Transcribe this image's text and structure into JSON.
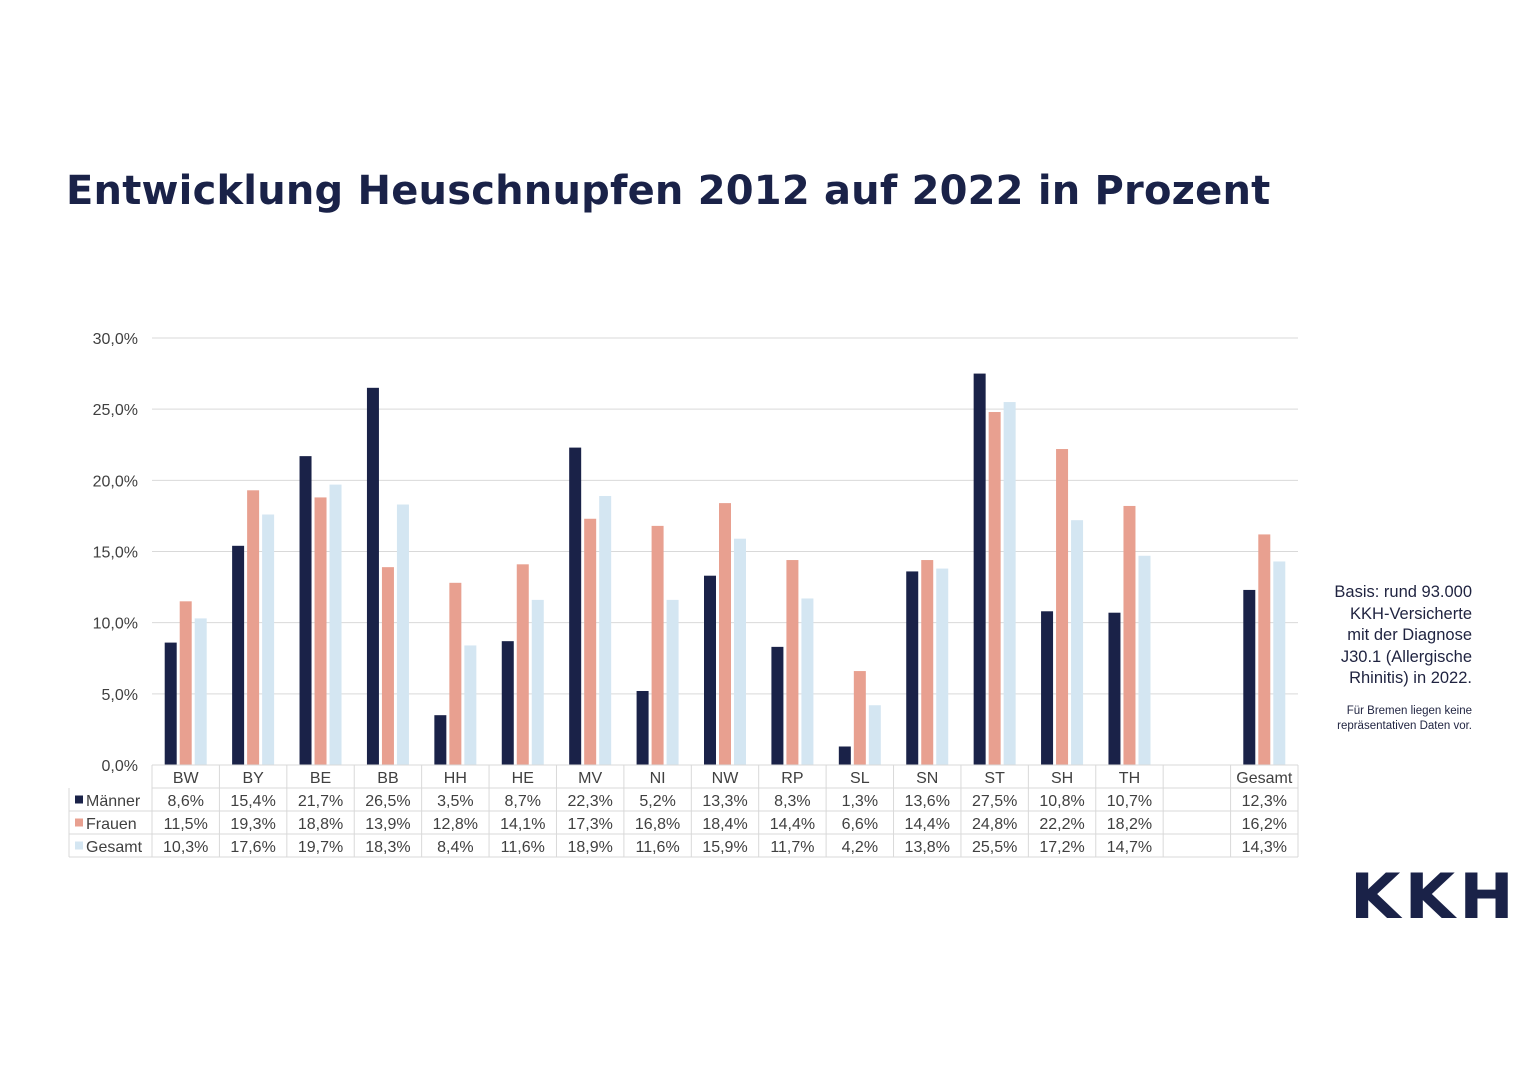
{
  "title": "Entwicklung Heuschnupfen 2012 auf 2022 in Prozent",
  "note": {
    "lines": [
      "Basis: rund 93.000",
      "KKH-Versicherte",
      "mit der Diagnose",
      "J30.1 (Allergische",
      "Rhinitis) in 2022."
    ],
    "footnote_lines": [
      "Für Bremen liegen keine",
      "repräsentativen  Daten vor."
    ]
  },
  "logo_text": "KKH",
  "colors": {
    "maenner": "#1a2248",
    "frauen": "#e8a090",
    "gesamt": "#d4e6f2",
    "grid": "#d9d9d9",
    "text": "#404040"
  },
  "chart_data": {
    "type": "bar",
    "title": "Entwicklung Heuschnupfen 2012 auf 2022 in Prozent",
    "xlabel": "",
    "ylabel": "",
    "ylim": [
      0,
      30
    ],
    "yticks": [
      0,
      5,
      10,
      15,
      20,
      25,
      30
    ],
    "ytick_labels": [
      "0,0%",
      "5,0%",
      "10,0%",
      "15,0%",
      "20,0%",
      "25,0%",
      "30,0%"
    ],
    "grid": true,
    "legend_placement": "table-below",
    "categories": [
      "BW",
      "BY",
      "BE",
      "BB",
      "HH",
      "HE",
      "MV",
      "NI",
      "NW",
      "RP",
      "SL",
      "SN",
      "ST",
      "SH",
      "TH",
      "",
      "Gesamt"
    ],
    "series": [
      {
        "name": "Männer",
        "color": "#1a2248",
        "values": [
          8.6,
          15.4,
          21.7,
          26.5,
          3.5,
          8.7,
          22.3,
          5.2,
          13.3,
          8.3,
          1.3,
          13.6,
          27.5,
          10.8,
          10.7,
          null,
          12.3
        ],
        "labels": [
          "8,6%",
          "15,4%",
          "21,7%",
          "26,5%",
          "3,5%",
          "8,7%",
          "22,3%",
          "5,2%",
          "13,3%",
          "8,3%",
          "1,3%",
          "13,6%",
          "27,5%",
          "10,8%",
          "10,7%",
          "",
          "12,3%"
        ]
      },
      {
        "name": "Frauen",
        "color": "#e8a090",
        "values": [
          11.5,
          19.3,
          18.8,
          13.9,
          12.8,
          14.1,
          17.3,
          16.8,
          18.4,
          14.4,
          6.6,
          14.4,
          24.8,
          22.2,
          18.2,
          null,
          16.2
        ],
        "labels": [
          "11,5%",
          "19,3%",
          "18,8%",
          "13,9%",
          "12,8%",
          "14,1%",
          "17,3%",
          "16,8%",
          "18,4%",
          "14,4%",
          "6,6%",
          "14,4%",
          "24,8%",
          "22,2%",
          "18,2%",
          "",
          "16,2%"
        ]
      },
      {
        "name": "Gesamt",
        "color": "#d4e6f2",
        "values": [
          10.3,
          17.6,
          19.7,
          18.3,
          8.4,
          11.6,
          18.9,
          11.6,
          15.9,
          11.7,
          4.2,
          13.8,
          25.5,
          17.2,
          14.7,
          null,
          14.3
        ],
        "labels": [
          "10,3%",
          "17,6%",
          "19,7%",
          "18,3%",
          "8,4%",
          "11,6%",
          "18,9%",
          "11,6%",
          "15,9%",
          "11,7%",
          "4,2%",
          "13,8%",
          "25,5%",
          "17,2%",
          "14,7%",
          "",
          "14,3%"
        ]
      }
    ]
  }
}
